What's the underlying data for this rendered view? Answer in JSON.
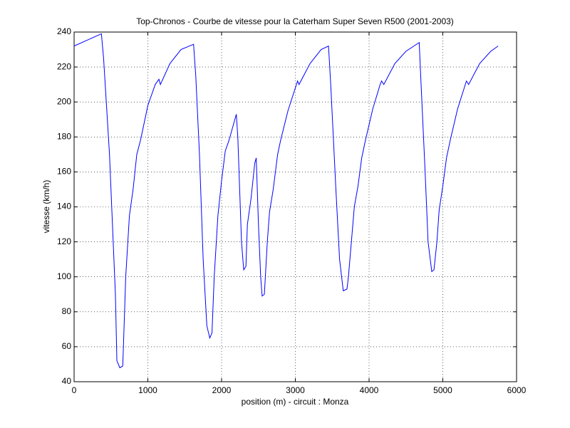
{
  "chart_data": {
    "type": "line",
    "title": "Top-Chronos - Courbe de vitesse pour la Caterham Super Seven R500 (2001-2003)",
    "x_label": "position (m) - circuit : Monza",
    "y_label": "vitesse (km/h)",
    "x": [
      0,
      370,
      400,
      480,
      560,
      580,
      620,
      660,
      700,
      750,
      800,
      850,
      900,
      1000,
      1100,
      1150,
      1170,
      1300,
      1450,
      1620,
      1650,
      1700,
      1750,
      1800,
      1840,
      1870,
      1900,
      1950,
      2000,
      2050,
      2100,
      2200,
      2220,
      2270,
      2300,
      2330,
      2350,
      2400,
      2450,
      2470,
      2500,
      2530,
      2550,
      2580,
      2620,
      2650,
      2700,
      2760,
      2800,
      2900,
      3000,
      3030,
      3050,
      3200,
      3350,
      3450,
      3480,
      3550,
      3600,
      3650,
      3700,
      3720,
      3800,
      3850,
      3900,
      3950,
      4050,
      4150,
      4170,
      4200,
      4350,
      4500,
      4680,
      4700,
      4760,
      4800,
      4850,
      4880,
      4920,
      4950,
      5000,
      5050,
      5100,
      5200,
      5320,
      5350,
      5500,
      5650,
      5750
    ],
    "values": [
      232,
      239,
      225,
      170,
      90,
      52,
      48,
      49,
      100,
      135,
      150,
      170,
      178,
      198,
      210,
      213,
      210,
      222,
      230,
      233,
      215,
      170,
      110,
      72,
      65,
      68,
      100,
      135,
      155,
      172,
      178,
      193,
      180,
      120,
      104,
      106,
      130,
      145,
      165,
      168,
      130,
      100,
      89,
      90,
      120,
      137,
      150,
      170,
      178,
      195,
      208,
      212,
      210,
      222,
      230,
      232,
      210,
      150,
      110,
      92,
      93,
      100,
      140,
      152,
      168,
      178,
      196,
      210,
      212,
      210,
      222,
      229,
      234,
      215,
      160,
      120,
      103,
      104,
      120,
      138,
      152,
      168,
      178,
      196,
      212,
      210,
      222,
      229,
      232
    ],
    "color": "#0000ff",
    "xlim": [
      0,
      6000
    ],
    "xticks": [
      0,
      1000,
      2000,
      3000,
      4000,
      5000,
      6000
    ],
    "ylim": [
      40,
      240
    ],
    "yticks": [
      40,
      60,
      80,
      100,
      120,
      140,
      160,
      180,
      200,
      220,
      240
    ],
    "grid": true
  }
}
